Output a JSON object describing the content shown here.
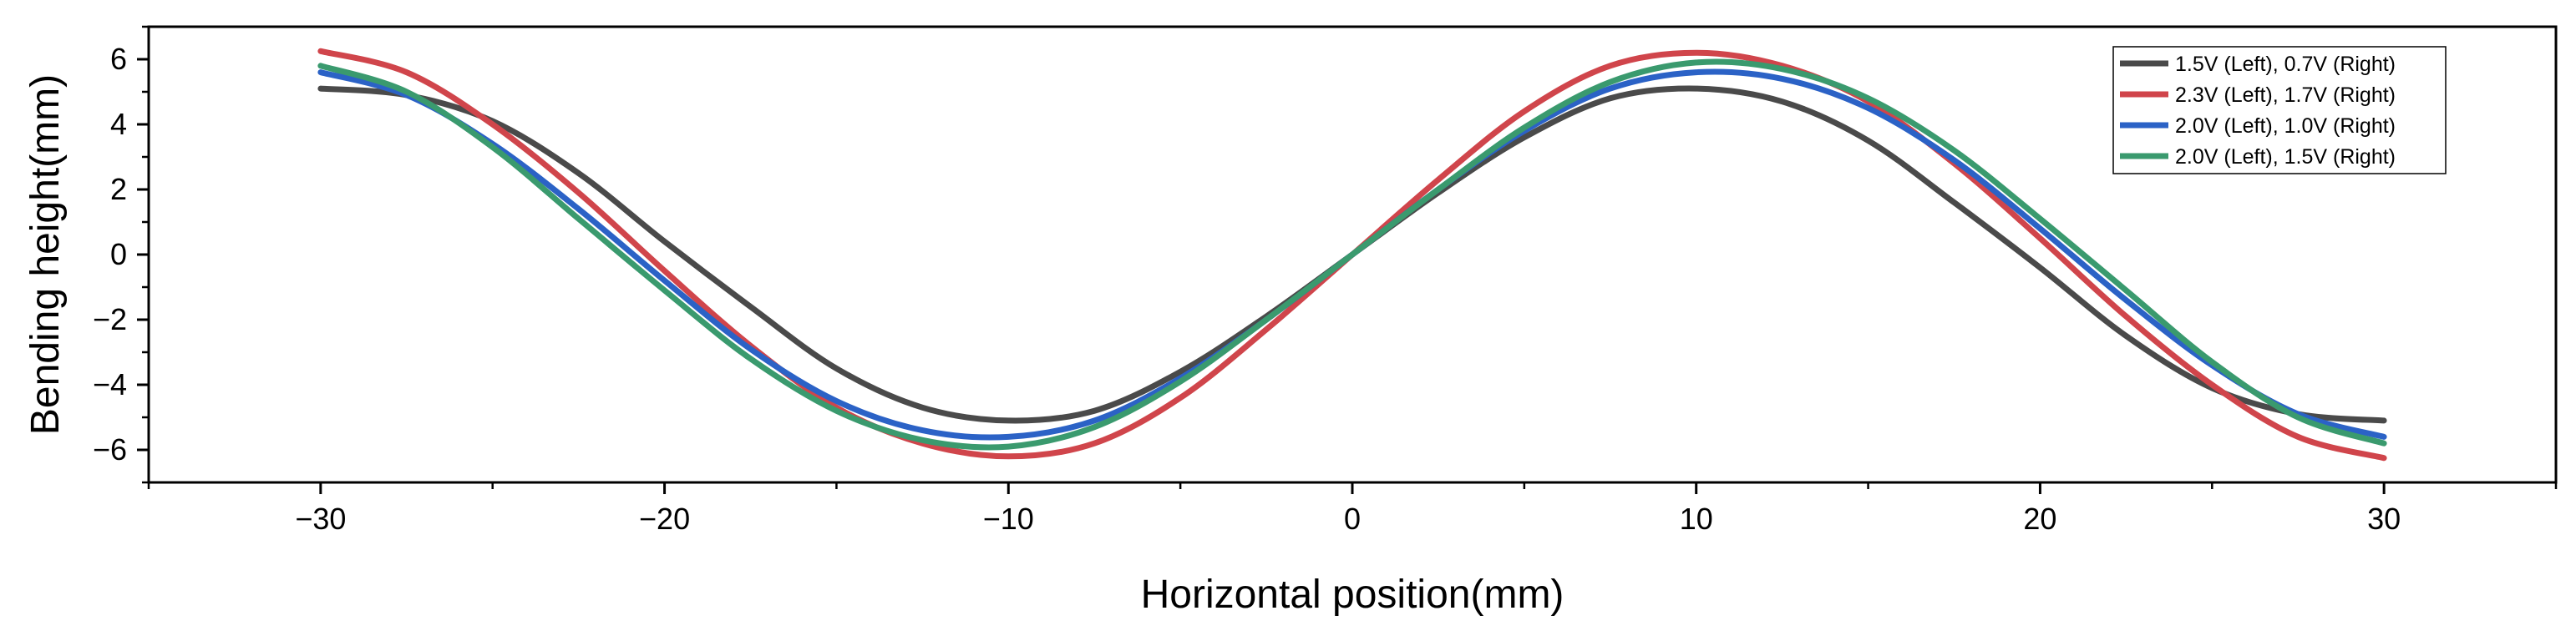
{
  "chart_data": {
    "type": "line",
    "title": "",
    "xlabel": "Horizontal position(mm)",
    "ylabel": "Bending height(mm)",
    "xlim": [
      -35,
      35
    ],
    "ylim": [
      -7,
      7
    ],
    "x_ticks": [
      -30,
      -20,
      -10,
      0,
      10,
      20,
      30
    ],
    "x_tick_labels": [
      "−30",
      "−20",
      "−10",
      "0",
      "10",
      "20",
      "30"
    ],
    "y_ticks": [
      -6,
      -4,
      -2,
      0,
      2,
      4,
      6
    ],
    "y_tick_labels": [
      "−6",
      "−4",
      "−2",
      "0",
      "2",
      "4",
      "6"
    ],
    "grid": false,
    "legend_position": "top-right",
    "series": [
      {
        "name": "1.5V (Left), 0.7V (Right)",
        "color": "#4a4a4a",
        "x": [
          -30,
          -27.5,
          -25,
          -22.5,
          -20,
          -17.5,
          -15,
          -12.5,
          -10,
          -7.5,
          -5,
          -2.5,
          0,
          2.5,
          5,
          7.5,
          10,
          12.5,
          15,
          17.5,
          20,
          22.5,
          25,
          27.5,
          30
        ],
        "y": [
          5.1,
          4.9,
          4.1,
          2.5,
          0.4,
          -1.6,
          -3.5,
          -4.7,
          -5.1,
          -4.8,
          -3.6,
          -1.9,
          0.0,
          1.9,
          3.6,
          4.8,
          5.1,
          4.7,
          3.5,
          1.6,
          -0.4,
          -2.5,
          -4.1,
          -4.9,
          -5.1
        ]
      },
      {
        "name": "2.3V (Left), 1.7V (Right)",
        "color": "#d0454b",
        "x": [
          -30,
          -27.5,
          -25,
          -22.5,
          -20,
          -17.5,
          -15,
          -12.5,
          -10,
          -7.5,
          -5,
          -2.5,
          0,
          2.5,
          5,
          7.5,
          10,
          12.5,
          15,
          17.5,
          20,
          22.5,
          25,
          27.5,
          30
        ],
        "y": [
          6.25,
          5.6,
          4.0,
          1.9,
          -0.5,
          -2.8,
          -4.7,
          -5.8,
          -6.2,
          -5.8,
          -4.4,
          -2.3,
          0.0,
          2.3,
          4.4,
          5.8,
          6.2,
          5.8,
          4.7,
          2.8,
          0.5,
          -1.9,
          -4.0,
          -5.6,
          -6.25
        ]
      },
      {
        "name": "2.0V (Left), 1.0V (Right)",
        "color": "#2b62c6",
        "x": [
          -30,
          -27.5,
          -25,
          -22.5,
          -20,
          -17.5,
          -15,
          -12.5,
          -10,
          -7.5,
          -5,
          -2.5,
          0,
          2.5,
          5,
          7.5,
          10,
          12.5,
          15,
          17.5,
          20,
          22.5,
          25,
          27.5,
          30
        ],
        "y": [
          5.6,
          4.9,
          3.4,
          1.4,
          -0.8,
          -2.9,
          -4.5,
          -5.4,
          -5.6,
          -5.1,
          -3.8,
          -2.0,
          0.0,
          2.0,
          3.8,
          5.1,
          5.6,
          5.4,
          4.5,
          2.9,
          0.8,
          -1.4,
          -3.4,
          -4.9,
          -5.6
        ]
      },
      {
        "name": "2.0V (Left), 1.5V (Right)",
        "color": "#3a9a6e",
        "x": [
          -30,
          -27.5,
          -25,
          -22.5,
          -20,
          -17.5,
          -15,
          -12.5,
          -10,
          -7.5,
          -5,
          -2.5,
          0,
          2.5,
          5,
          7.5,
          10,
          12.5,
          15,
          17.5,
          20,
          22.5,
          25,
          27.5,
          30
        ],
        "y": [
          5.8,
          5.0,
          3.3,
          1.1,
          -1.1,
          -3.2,
          -4.8,
          -5.7,
          -5.9,
          -5.3,
          -3.9,
          -2.0,
          0.0,
          2.0,
          3.9,
          5.3,
          5.9,
          5.7,
          4.8,
          3.2,
          1.1,
          -1.1,
          -3.3,
          -5.0,
          -5.8
        ]
      }
    ]
  }
}
